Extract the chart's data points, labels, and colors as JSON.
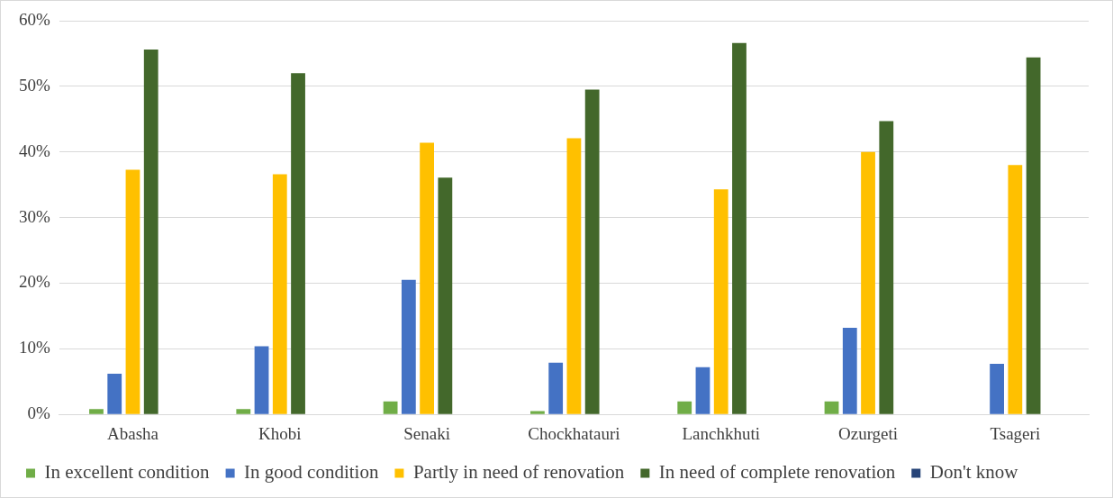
{
  "chart_data": {
    "type": "bar",
    "categories": [
      "Abasha",
      "Khobi",
      "Senaki",
      "Chockhatauri",
      "Lanchkhuti",
      "Ozurgeti",
      "Tsageri"
    ],
    "series": [
      {
        "name": "In excellent condition",
        "color": "#70ad47",
        "values": [
          0.8,
          0.8,
          2.0,
          0.5,
          2.0,
          2.0,
          0
        ]
      },
      {
        "name": "In good condition",
        "color": "#4472c4",
        "values": [
          6.2,
          10.4,
          20.5,
          7.9,
          7.2,
          13.2,
          7.7
        ]
      },
      {
        "name": "Partly in need of renovation",
        "color": "#ffc000",
        "values": [
          37.3,
          36.6,
          41.4,
          42.1,
          34.3,
          40.0,
          38.0
        ]
      },
      {
        "name": "In need of complete renovation",
        "color": "#43682b",
        "values": [
          55.6,
          52.0,
          36.1,
          49.5,
          56.6,
          44.7,
          54.4
        ]
      },
      {
        "name": "Don't know",
        "color": "#264478",
        "values": [
          0,
          0,
          0,
          0,
          0,
          0,
          0
        ]
      }
    ],
    "ylim": [
      0,
      60
    ],
    "yticks": [
      {
        "value": 0,
        "label": "0%"
      },
      {
        "value": 10,
        "label": "10%"
      },
      {
        "value": 20,
        "label": "20%"
      },
      {
        "value": 30,
        "label": "30%"
      },
      {
        "value": 40,
        "label": "40%"
      },
      {
        "value": 50,
        "label": "50%"
      },
      {
        "value": 60,
        "label": "60%"
      }
    ],
    "grid": "y",
    "legend": "bottom"
  }
}
